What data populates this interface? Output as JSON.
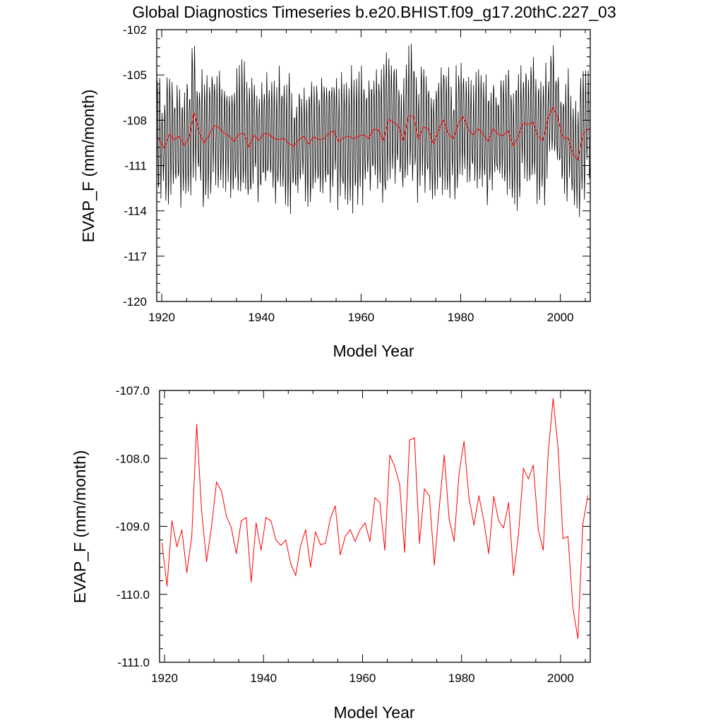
{
  "title": "Global Diagnostics Timeseries b.e20.BHIST.f09_g17.20thC.227_03",
  "chart_data": [
    {
      "type": "line",
      "panel": "monthly-and-annual",
      "xlabel": "Model Year",
      "ylabel": "EVAP_F (mm/month)",
      "xlim": [
        1919,
        2006
      ],
      "ylim": [
        -120,
        -102
      ],
      "x_ticks": [
        "1920",
        "1940",
        "1960",
        "1980",
        "2000"
      ],
      "y_ticks": [
        "-102",
        "-105",
        "-108",
        "-111",
        "-114",
        "-117",
        "-120"
      ],
      "colors": {
        "monthly": "#000000",
        "annual": "#ff0000"
      },
      "monthly_note_values": {
        "start_year": 1919,
        "pattern": "seasonal oscillation about annual mean",
        "annual_amplitude_range": [
          -116,
          -102.5
        ]
      },
      "series": [
        {
          "style": "monthly",
          "color": "#000000",
          "generated_from_annual": true
        },
        {
          "style": "annual",
          "color": "#ff0000"
        }
      ]
    },
    {
      "type": "line",
      "panel": "annual",
      "xlabel": "Model Year",
      "ylabel": "EVAP_F (mm/month)",
      "xlim": [
        1919,
        2006
      ],
      "ylim": [
        -111,
        -107
      ],
      "x_ticks": [
        "1920",
        "1940",
        "1960",
        "1980",
        "2000"
      ],
      "y_ticks": [
        "-107.0",
        "-108.0",
        "-109.0",
        "-110.0",
        "-111.0"
      ],
      "colors": {
        "annual": "#ff0000"
      },
      "x": [
        1919,
        1920,
        1921,
        1922,
        1923,
        1924,
        1925,
        1926,
        1927,
        1928,
        1929,
        1930,
        1931,
        1932,
        1933,
        1934,
        1935,
        1936,
        1937,
        1938,
        1939,
        1940,
        1941,
        1942,
        1943,
        1944,
        1945,
        1946,
        1947,
        1948,
        1949,
        1950,
        1951,
        1952,
        1953,
        1954,
        1955,
        1956,
        1957,
        1958,
        1959,
        1960,
        1961,
        1962,
        1963,
        1964,
        1965,
        1966,
        1967,
        1968,
        1969,
        1970,
        1971,
        1972,
        1973,
        1974,
        1975,
        1976,
        1977,
        1978,
        1979,
        1980,
        1981,
        1982,
        1983,
        1984,
        1985,
        1986,
        1987,
        1988,
        1989,
        1990,
        1991,
        1992,
        1993,
        1994,
        1995,
        1996,
        1997,
        1998,
        1999,
        2000,
        2001,
        2002,
        2003,
        2004,
        2005
      ],
      "values": [
        -109.25,
        -109.88,
        -108.92,
        -109.3,
        -109.05,
        -109.68,
        -109.15,
        -107.5,
        -108.78,
        -109.52,
        -109.0,
        -108.35,
        -108.48,
        -108.85,
        -109.02,
        -109.4,
        -108.92,
        -108.87,
        -109.82,
        -108.95,
        -109.35,
        -108.87,
        -108.92,
        -109.2,
        -109.28,
        -109.2,
        -109.55,
        -109.72,
        -109.28,
        -109.05,
        -109.6,
        -109.08,
        -109.27,
        -109.25,
        -108.88,
        -108.7,
        -109.42,
        -109.15,
        -109.05,
        -109.22,
        -109.05,
        -108.95,
        -109.22,
        -108.58,
        -108.65,
        -109.35,
        -107.95,
        -108.12,
        -108.38,
        -109.38,
        -107.73,
        -107.7,
        -109.25,
        -108.45,
        -108.55,
        -109.57,
        -108.72,
        -107.95,
        -108.9,
        -109.22,
        -108.22,
        -107.75,
        -108.58,
        -108.98,
        -108.55,
        -108.92,
        -109.4,
        -108.56,
        -108.92,
        -109.02,
        -108.65,
        -109.72,
        -109.12,
        -108.15,
        -108.3,
        -108.1,
        -109.05,
        -109.35,
        -107.92,
        -107.12,
        -107.85,
        -109.18,
        -109.15,
        -110.2,
        -110.65,
        -108.97,
        -108.55
      ]
    }
  ]
}
